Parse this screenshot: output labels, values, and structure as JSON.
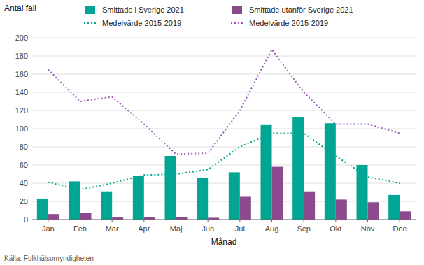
{
  "chart_data": {
    "type": "bar",
    "ylabel": "Antal fall",
    "xlabel": "Månad",
    "annotations": [
      "Källa: Folkhälsomyndigheten"
    ],
    "categories": [
      "Jan",
      "Feb",
      "Mar",
      "Apr",
      "Maj",
      "Jun",
      "Jul",
      "Aug",
      "Sep",
      "Okt",
      "Nov",
      "Dec"
    ],
    "series": [
      {
        "name": "Smittade i Sverige 2021",
        "type": "bar",
        "color": "#00A693",
        "values": [
          23,
          42,
          31,
          48,
          70,
          46,
          52,
          104,
          113,
          106,
          60,
          27
        ]
      },
      {
        "name": "Smittade utanför Sverige 2021",
        "type": "bar",
        "color": "#8B4A8B",
        "values": [
          6,
          7,
          3,
          3,
          3,
          2,
          25,
          58,
          31,
          22,
          19,
          9
        ]
      },
      {
        "name": "Medelvärde 2015-2019",
        "type": "line",
        "line_style": "dotted",
        "color": "#00A693",
        "values": [
          41,
          33,
          40,
          49,
          50,
          55,
          80,
          95,
          95,
          70,
          47,
          40
        ]
      },
      {
        "name": "Medelvärde 2015-2019",
        "type": "line",
        "line_style": "dotted",
        "color": "#9B59B6",
        "values": [
          165,
          130,
          135,
          105,
          72,
          73,
          120,
          187,
          140,
          105,
          105,
          95
        ]
      }
    ],
    "ylim": [
      0,
      200
    ],
    "yticks": [
      0,
      20,
      40,
      60,
      80,
      100,
      120,
      140,
      160,
      180,
      200
    ],
    "grid": true,
    "legend": "top"
  }
}
